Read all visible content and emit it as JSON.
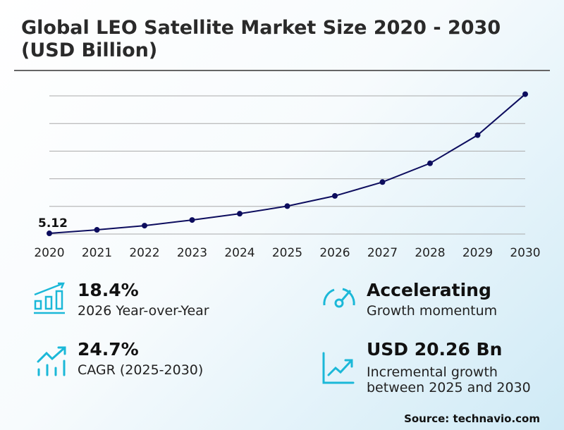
{
  "chart_data": {
    "type": "line",
    "title": "Global LEO Satellite Market Size 2020 - 2030 (USD Billion)",
    "x": [
      "2020",
      "2021",
      "2022",
      "2023",
      "2024",
      "2025",
      "2026",
      "2027",
      "2028",
      "2029",
      "2030"
    ],
    "series": [
      {
        "values": [
          5.12,
          5.76,
          6.52,
          7.54,
          8.68,
          10.05,
          11.9,
          14.4,
          17.8,
          22.9,
          30.31
        ]
      }
    ],
    "data_labels": [
      {
        "x": "2020",
        "text": "5.12"
      }
    ],
    "ylim": [
      5,
      30
    ],
    "yticks_hidden": true,
    "grid": true,
    "line_color": "#0d0d5e",
    "xlabel": "",
    "ylabel": ""
  },
  "kpis": [
    {
      "value": "18.4%",
      "label": "2026 Year-over-Year",
      "icon": "bar-chart-growth-icon"
    },
    {
      "value": "Accelerating",
      "label": "Growth momentum",
      "icon": "speedometer-icon"
    },
    {
      "value": "24.7%",
      "label": "CAGR (2025-2030)",
      "icon": "trend-bars-icon"
    },
    {
      "value": "USD 20.26 Bn",
      "label": "Incremental growth between 2025 and 2030",
      "icon": "line-chart-up-icon"
    }
  ],
  "source": "Source: technavio.com",
  "accent_color": "#1bb8d8"
}
